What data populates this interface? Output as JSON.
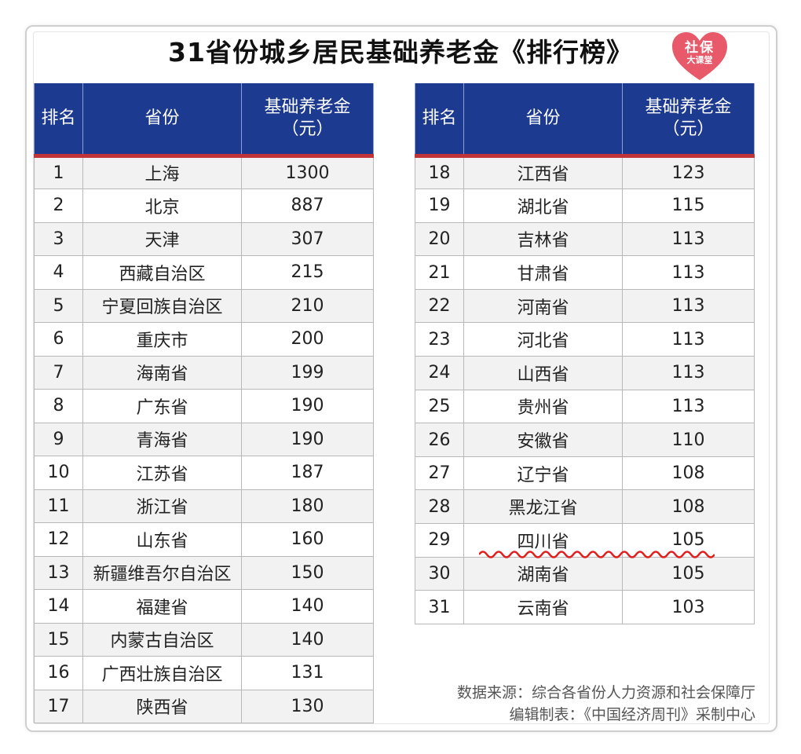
{
  "title": "31省份城乡居民基础养老金《排行榜》",
  "logo": {
    "line1": "社保",
    "line2": "大课堂",
    "color": "#e8596a"
  },
  "headers": {
    "rank": "排名",
    "province": "省份",
    "amount_line1": "基础养老金",
    "amount_line2": "（元）"
  },
  "colors": {
    "header_bg": "#1c3a8f",
    "header_underline": "#c0343a",
    "highlight_wave": "#e0201e"
  },
  "left_rows": [
    {
      "rank": "1",
      "province": "上海",
      "amount": "1300"
    },
    {
      "rank": "2",
      "province": "北京",
      "amount": "887"
    },
    {
      "rank": "3",
      "province": "天津",
      "amount": "307"
    },
    {
      "rank": "4",
      "province": "西藏自治区",
      "amount": "215"
    },
    {
      "rank": "5",
      "province": "宁夏回族自治区",
      "amount": "210"
    },
    {
      "rank": "6",
      "province": "重庆市",
      "amount": "200"
    },
    {
      "rank": "7",
      "province": "海南省",
      "amount": "199"
    },
    {
      "rank": "8",
      "province": "广东省",
      "amount": "190"
    },
    {
      "rank": "9",
      "province": "青海省",
      "amount": "190"
    },
    {
      "rank": "10",
      "province": "江苏省",
      "amount": "187"
    },
    {
      "rank": "11",
      "province": "浙江省",
      "amount": "180"
    },
    {
      "rank": "12",
      "province": "山东省",
      "amount": "160"
    },
    {
      "rank": "13",
      "province": "新疆维吾尔自治区",
      "amount": "150"
    },
    {
      "rank": "14",
      "province": "福建省",
      "amount": "140"
    },
    {
      "rank": "15",
      "province": "内蒙古自治区",
      "amount": "140"
    },
    {
      "rank": "16",
      "province": "广西壮族自治区",
      "amount": "131"
    },
    {
      "rank": "17",
      "province": "陕西省",
      "amount": "130"
    }
  ],
  "right_rows": [
    {
      "rank": "18",
      "province": "江西省",
      "amount": "123"
    },
    {
      "rank": "19",
      "province": "湖北省",
      "amount": "115"
    },
    {
      "rank": "20",
      "province": "吉林省",
      "amount": "113"
    },
    {
      "rank": "21",
      "province": "甘肃省",
      "amount": "113"
    },
    {
      "rank": "22",
      "province": "河南省",
      "amount": "113"
    },
    {
      "rank": "23",
      "province": "河北省",
      "amount": "113"
    },
    {
      "rank": "24",
      "province": "山西省",
      "amount": "113"
    },
    {
      "rank": "25",
      "province": "贵州省",
      "amount": "113"
    },
    {
      "rank": "26",
      "province": "安徽省",
      "amount": "110"
    },
    {
      "rank": "27",
      "province": "辽宁省",
      "amount": "108"
    },
    {
      "rank": "28",
      "province": "黑龙江省",
      "amount": "108"
    },
    {
      "rank": "29",
      "province": "四川省",
      "amount": "105"
    },
    {
      "rank": "30",
      "province": "湖南省",
      "amount": "105"
    },
    {
      "rank": "31",
      "province": "云南省",
      "amount": "103"
    }
  ],
  "source": {
    "line1": "数据来源：综合各省份人力资源和社会保障厅",
    "line2": "编辑制表：《中国经济周刊》采制中心"
  }
}
